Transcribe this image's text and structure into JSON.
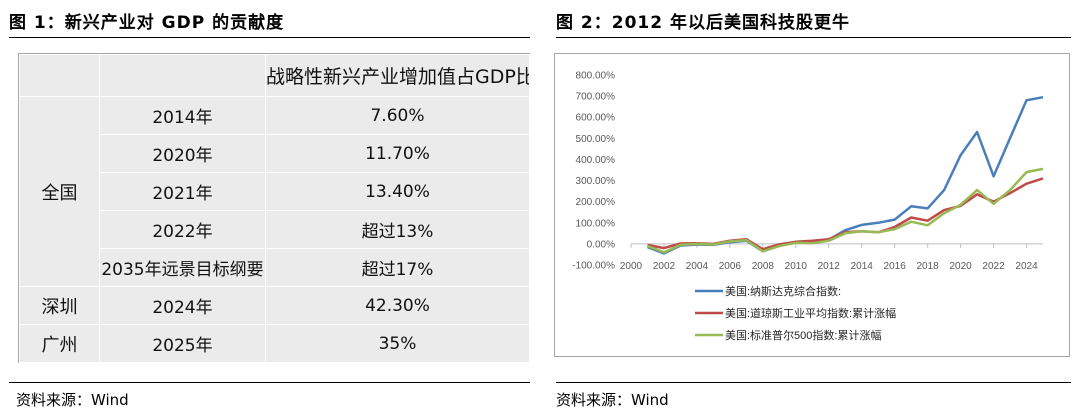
{
  "left_panel": {
    "title": "图 1：新兴产业对 GDP 的贡献度",
    "source": "资料来源：Wind",
    "table": {
      "header": [
        "",
        "",
        "战略性新兴产业增加值占GDP比重"
      ],
      "regions": [
        {
          "name": "全国",
          "rows": [
            {
              "year": "2014年",
              "value": "7.60%"
            },
            {
              "year": "2020年",
              "value": "11.70%"
            },
            {
              "year": "2021年",
              "value": "13.40%"
            },
            {
              "year": "2022年",
              "value": "超过13%"
            },
            {
              "year": "2035年远景目标纲要",
              "value": "超过17%"
            }
          ]
        },
        {
          "name": "深圳",
          "rows": [
            {
              "year": "2024年",
              "value": "42.30%"
            }
          ]
        },
        {
          "name": "广州",
          "rows": [
            {
              "year": "2025年",
              "value": "35%"
            }
          ]
        }
      ]
    }
  },
  "right_panel": {
    "title": "图 2：2012 年以后美国科技股更牛",
    "source": "资料来源：Wind"
  },
  "chart_data": {
    "type": "line",
    "title": "",
    "xlabel": "",
    "ylabel": "",
    "xlim": [
      2000,
      2025
    ],
    "ylim": [
      -100,
      800
    ],
    "x_ticks": [
      "2000",
      "2002",
      "2004",
      "2006",
      "2008",
      "2010",
      "2012",
      "2014",
      "2016",
      "2018",
      "2020",
      "2022",
      "2024"
    ],
    "y_ticks": [
      "800.00%",
      "700.00%",
      "600.00%",
      "500.00%",
      "400.00%",
      "300.00%",
      "200.00%",
      "100.00%",
      "0.00%",
      "-100.00%"
    ],
    "grid": false,
    "legend_position": "bottom",
    "x": [
      2001,
      2002,
      2003,
      2004,
      2005,
      2006,
      2007,
      2008,
      2009,
      2010,
      2011,
      2012,
      2013,
      2014,
      2015,
      2016,
      2017,
      2018,
      2019,
      2020,
      2021,
      2022,
      2023,
      2024,
      2025
    ],
    "series": [
      {
        "name": "美国:纳斯达克综合指数:",
        "color": "#4a7ebb",
        "values": [
          -15,
          -45,
          -8,
          -3,
          -5,
          8,
          15,
          -35,
          -5,
          10,
          8,
          20,
          65,
          90,
          100,
          115,
          178,
          168,
          255,
          420,
          530,
          320,
          500,
          680,
          695
        ]
      },
      {
        "name": "美国:道琼斯工业平均指数:累计涨幅",
        "color": "#be4b48",
        "values": [
          -5,
          -20,
          2,
          3,
          0,
          15,
          22,
          -25,
          -2,
          10,
          15,
          22,
          55,
          60,
          55,
          80,
          125,
          110,
          160,
          180,
          235,
          200,
          240,
          285,
          310
        ]
      },
      {
        "name": "美国:标准普尔500指数:累计涨幅",
        "color": "#98b954",
        "values": [
          -10,
          -40,
          -5,
          0,
          -3,
          12,
          18,
          -35,
          -10,
          5,
          3,
          15,
          50,
          60,
          55,
          70,
          105,
          88,
          145,
          185,
          255,
          190,
          255,
          340,
          355
        ]
      }
    ]
  }
}
